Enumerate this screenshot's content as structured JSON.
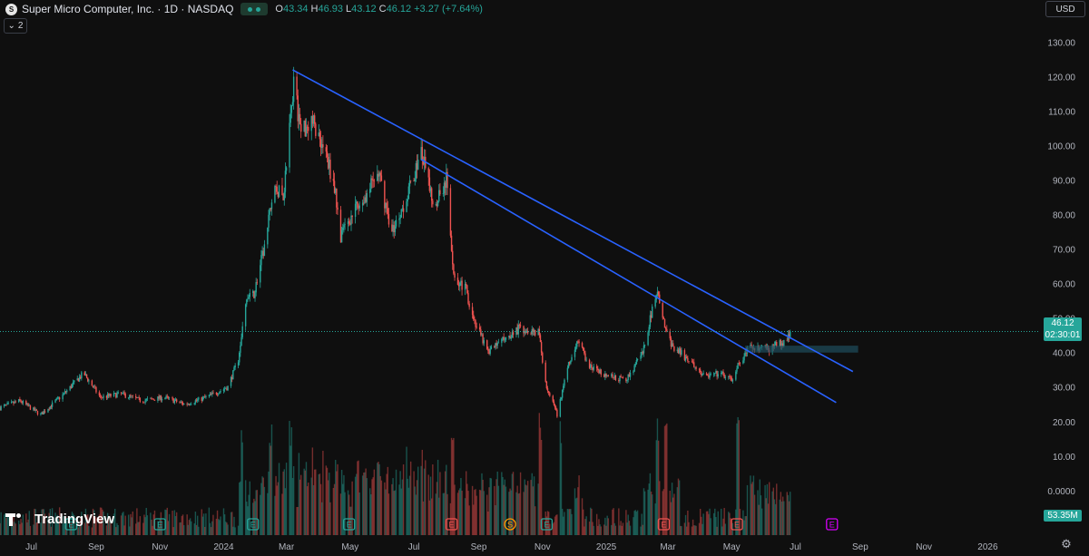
{
  "header": {
    "logo_text": "S",
    "title": "Super Micro Computer, Inc. · 1D · NASDAQ",
    "ohlc": [
      {
        "label": "O",
        "value": "43.34"
      },
      {
        "label": "H",
        "value": "46.93"
      },
      {
        "label": "L",
        "value": "43.12"
      },
      {
        "label": "C",
        "value": "46.12"
      }
    ],
    "change": "+3.27 (+7.64%)"
  },
  "collapse_count": "2",
  "currency": "USD",
  "brand": "TradingView",
  "last_price": "46.12",
  "countdown": "02:30:01",
  "volume_tag": "53.35M",
  "colors": {
    "up": "#26a69a",
    "down": "#ef5350",
    "trendline": "#2962ff",
    "zone": "#1e4d5c"
  },
  "chart_data": {
    "type": "candlestick",
    "xlabel": "",
    "ylabel": "",
    "y_ticks": [
      "130.00",
      "120.00",
      "110.00",
      "100.00",
      "90.00",
      "80.00",
      "70.00",
      "60.00",
      "50.00",
      "40.00",
      "30.00",
      "20.00",
      "10.00",
      "0.0000"
    ],
    "ylim": [
      -9,
      137
    ],
    "x_ticks": [
      "Jul",
      "Sep",
      "Nov",
      "2024",
      "Mar",
      "May",
      "Jul",
      "Sep",
      "Nov",
      "2025",
      "Mar",
      "May",
      "Jul",
      "Sep",
      "Nov",
      "2026"
    ],
    "x_tick_dates": [
      "2023-07-01",
      "2023-09-01",
      "2023-11-01",
      "2024-01-01",
      "2024-03-01",
      "2024-05-01",
      "2024-07-01",
      "2024-09-01",
      "2024-11-01",
      "2025-01-01",
      "2025-03-01",
      "2025-05-01",
      "2025-07-01",
      "2025-09-01",
      "2025-11-01",
      "2026-01-01"
    ],
    "grid": false,
    "price_path": [
      [
        "2023-06-01",
        24
      ],
      [
        "2023-06-20",
        26
      ],
      [
        "2023-07-10",
        22
      ],
      [
        "2023-08-01",
        28
      ],
      [
        "2023-08-20",
        34
      ],
      [
        "2023-09-05",
        27
      ],
      [
        "2023-09-25",
        28
      ],
      [
        "2023-10-15",
        26
      ],
      [
        "2023-11-05",
        27
      ],
      [
        "2023-11-25",
        25
      ],
      [
        "2023-12-15",
        27
      ],
      [
        "2024-01-05",
        30
      ],
      [
        "2024-01-15",
        38
      ],
      [
        "2024-01-22",
        55
      ],
      [
        "2024-01-30",
        57
      ],
      [
        "2024-02-10",
        72
      ],
      [
        "2024-02-18",
        88
      ],
      [
        "2024-02-27",
        85
      ],
      [
        "2024-03-08",
        118
      ],
      [
        "2024-03-15",
        104
      ],
      [
        "2024-03-25",
        108
      ],
      [
        "2024-04-05",
        100
      ],
      [
        "2024-04-15",
        90
      ],
      [
        "2024-04-22",
        74
      ],
      [
        "2024-05-01",
        79
      ],
      [
        "2024-05-15",
        85
      ],
      [
        "2024-05-28",
        92
      ],
      [
        "2024-06-10",
        75
      ],
      [
        "2024-06-25",
        86
      ],
      [
        "2024-07-08",
        98
      ],
      [
        "2024-07-20",
        83
      ],
      [
        "2024-08-01",
        90
      ],
      [
        "2024-08-08",
        63
      ],
      [
        "2024-08-20",
        58
      ],
      [
        "2024-08-28",
        49
      ],
      [
        "2024-09-10",
        40
      ],
      [
        "2024-09-25",
        44
      ],
      [
        "2024-10-10",
        47
      ],
      [
        "2024-10-28",
        46
      ],
      [
        "2024-11-05",
        30
      ],
      [
        "2024-11-15",
        22
      ],
      [
        "2024-11-25",
        36
      ],
      [
        "2024-12-05",
        44
      ],
      [
        "2024-12-15",
        36
      ],
      [
        "2025-01-05",
        33
      ],
      [
        "2025-01-20",
        32
      ],
      [
        "2025-02-05",
        40
      ],
      [
        "2025-02-18",
        58
      ],
      [
        "2025-02-24",
        50
      ],
      [
        "2025-03-05",
        42
      ],
      [
        "2025-03-20",
        38
      ],
      [
        "2025-04-05",
        33
      ],
      [
        "2025-04-20",
        34
      ],
      [
        "2025-05-01",
        32
      ],
      [
        "2025-05-10",
        38
      ],
      [
        "2025-05-20",
        42
      ],
      [
        "2025-06-05",
        41
      ],
      [
        "2025-06-20",
        43
      ],
      [
        "2025-06-26",
        46.12
      ]
    ],
    "trendlines": [
      {
        "from": [
          "2024-03-07",
          122
        ],
        "to": [
          "2025-08-25",
          34.5
        ]
      },
      {
        "from": [
          "2024-07-08",
          96
        ],
        "to": [
          "2025-08-09",
          25.5
        ]
      }
    ],
    "zones": [
      {
        "from": "2025-05-14",
        "to": "2025-08-30",
        "low": 40,
        "high": 42
      }
    ],
    "last_price": 46.12,
    "event_markers": [
      {
        "label": "E",
        "date": "2023-08-08",
        "color": "#26a69a"
      },
      {
        "label": "E",
        "date": "2023-11-01",
        "color": "#26a69a"
      },
      {
        "label": "E",
        "date": "2024-01-29",
        "color": "#26a69a"
      },
      {
        "label": "E",
        "date": "2024-04-30",
        "color": "#26a69a"
      },
      {
        "label": "E",
        "date": "2024-08-06",
        "color": "#ef5350"
      },
      {
        "label": "S",
        "date": "2024-10-01",
        "color": "#ff9800"
      },
      {
        "label": "E",
        "date": "2024-11-05",
        "color": "#26a69a"
      },
      {
        "label": "E",
        "date": "2025-02-25",
        "color": "#ef5350"
      },
      {
        "label": "E",
        "date": "2025-05-06",
        "color": "#ef5350"
      },
      {
        "label": "E",
        "date": "2025-08-05",
        "color": "#d500f9"
      }
    ]
  }
}
